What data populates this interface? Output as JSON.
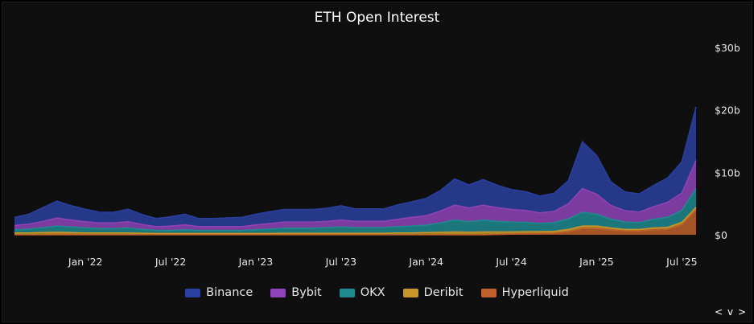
{
  "chart_data": {
    "type": "area",
    "title": "ETH Open Interest",
    "stacked": true,
    "y_unit": "USD",
    "ylim": [
      0,
      30
    ],
    "y_ticks": [
      "$0",
      "$10b",
      "$20b",
      "$30b"
    ],
    "x_ticks": [
      "Jan '22",
      "Jul '22",
      "Jan '23",
      "Jul '23",
      "Jan '24",
      "Jul '24",
      "Jan '25",
      "Jul '25"
    ],
    "x": [
      "2021-08",
      "2021-09",
      "2021-10",
      "2021-11",
      "2021-12",
      "2022-01",
      "2022-02",
      "2022-03",
      "2022-04",
      "2022-05",
      "2022-06",
      "2022-07",
      "2022-08",
      "2022-09",
      "2022-10",
      "2022-11",
      "2022-12",
      "2023-01",
      "2023-02",
      "2023-03",
      "2023-04",
      "2023-05",
      "2023-06",
      "2023-07",
      "2023-08",
      "2023-09",
      "2023-10",
      "2023-11",
      "2023-12",
      "2024-01",
      "2024-02",
      "2024-03",
      "2024-04",
      "2024-05",
      "2024-06",
      "2024-07",
      "2024-08",
      "2024-09",
      "2024-10",
      "2024-11",
      "2024-12",
      "2025-01",
      "2025-02",
      "2025-03",
      "2025-04",
      "2025-05",
      "2025-06",
      "2025-07",
      "2025-08"
    ],
    "series": [
      {
        "name": "Hyperliquid",
        "color": "#c0602a",
        "values": [
          0,
          0,
          0,
          0,
          0,
          0,
          0,
          0,
          0,
          0,
          0,
          0,
          0,
          0,
          0,
          0,
          0,
          0,
          0,
          0,
          0,
          0,
          0,
          0,
          0,
          0,
          0,
          0,
          0,
          0,
          0,
          0,
          0,
          0,
          0.05,
          0.1,
          0.15,
          0.2,
          0.25,
          0.5,
          1.0,
          1.0,
          0.8,
          0.6,
          0.6,
          0.8,
          0.9,
          1.6,
          4.0
        ]
      },
      {
        "name": "Deribit",
        "color": "#c8952a",
        "values": [
          0.3,
          0.3,
          0.35,
          0.4,
          0.35,
          0.3,
          0.3,
          0.3,
          0.3,
          0.25,
          0.2,
          0.2,
          0.2,
          0.2,
          0.2,
          0.2,
          0.2,
          0.2,
          0.2,
          0.25,
          0.25,
          0.25,
          0.25,
          0.25,
          0.25,
          0.25,
          0.25,
          0.3,
          0.3,
          0.35,
          0.4,
          0.45,
          0.4,
          0.45,
          0.4,
          0.35,
          0.35,
          0.3,
          0.3,
          0.35,
          0.4,
          0.4,
          0.3,
          0.25,
          0.25,
          0.3,
          0.3,
          0.4,
          0.4
        ]
      },
      {
        "name": "OKX",
        "color": "#1f8a8f",
        "values": [
          0.5,
          0.6,
          0.8,
          1.0,
          0.9,
          0.8,
          0.7,
          0.7,
          0.8,
          0.6,
          0.5,
          0.5,
          0.6,
          0.5,
          0.5,
          0.5,
          0.5,
          0.6,
          0.7,
          0.8,
          0.8,
          0.8,
          0.9,
          1.0,
          0.9,
          0.9,
          0.9,
          1.0,
          1.1,
          1.2,
          1.5,
          1.9,
          1.7,
          1.9,
          1.7,
          1.6,
          1.5,
          1.3,
          1.4,
          1.7,
          2.2,
          1.9,
          1.4,
          1.2,
          1.1,
          1.4,
          1.6,
          1.9,
          3.0
        ]
      },
      {
        "name": "Bybit",
        "color": "#8f43b8",
        "values": [
          0.7,
          0.8,
          1.0,
          1.3,
          1.1,
          1.0,
          0.9,
          0.9,
          1.0,
          0.8,
          0.6,
          0.7,
          0.8,
          0.6,
          0.6,
          0.6,
          0.6,
          0.8,
          0.9,
          1.0,
          1.0,
          1.0,
          1.0,
          1.1,
          1.0,
          1.0,
          1.0,
          1.2,
          1.4,
          1.5,
          1.9,
          2.4,
          2.2,
          2.4,
          2.2,
          2.0,
          1.9,
          1.7,
          1.8,
          2.4,
          3.8,
          3.2,
          2.2,
          1.8,
          1.7,
          2.0,
          2.4,
          2.8,
          4.5
        ]
      },
      {
        "name": "Binance",
        "color": "#2a3f9e",
        "values": [
          1.3,
          1.6,
          2.2,
          2.7,
          2.3,
          2.0,
          1.7,
          1.7,
          2.0,
          1.6,
          1.3,
          1.5,
          1.7,
          1.3,
          1.3,
          1.4,
          1.5,
          1.7,
          1.9,
          2.0,
          2.0,
          2.0,
          2.1,
          2.3,
          2.0,
          2.0,
          2.0,
          2.3,
          2.5,
          2.8,
          3.3,
          4.2,
          3.7,
          4.1,
          3.6,
          3.2,
          3.0,
          2.7,
          2.9,
          3.7,
          7.5,
          6.2,
          3.8,
          3.0,
          2.9,
          3.4,
          3.9,
          5.0,
          8.6
        ]
      }
    ],
    "legend_order": [
      "Binance",
      "Bybit",
      "OKX",
      "Deribit",
      "Hyperliquid"
    ],
    "legend_position": "bottom-center",
    "grid": false
  },
  "ui": {
    "nav_arrows": "< v >"
  }
}
